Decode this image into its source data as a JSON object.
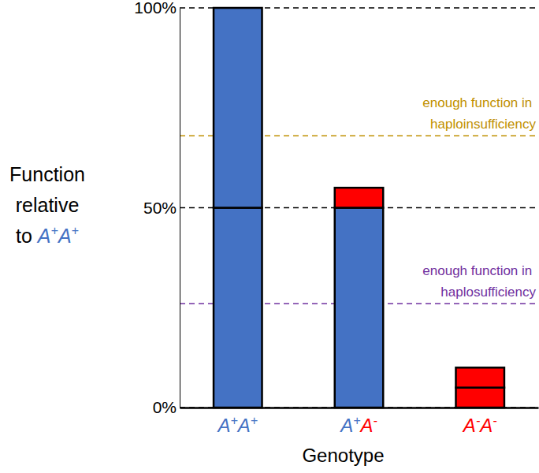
{
  "chart_data": {
    "type": "bar",
    "stacked": true,
    "y_label": "Function relative to A+A+",
    "x_label": "Genotype",
    "categories": [
      "A+A+",
      "A+A-",
      "A-A-"
    ],
    "series": [
      {
        "values": [
          50,
          50,
          5
        ],
        "colors": [
          "#4472c4",
          "#4472c4",
          "#ff0000"
        ]
      },
      {
        "values": [
          50,
          5,
          5
        ],
        "colors": [
          "#4472c4",
          "#ff0000",
          "#ff0000"
        ]
      }
    ],
    "ylim": [
      0,
      100
    ],
    "yticks": [
      {
        "value": 0,
        "label": "0%"
      },
      {
        "value": 50,
        "label": "50%"
      },
      {
        "value": 100,
        "label": "100%"
      }
    ],
    "grid": true,
    "annotations": [
      {
        "text": "enough function in haploinsufficiency",
        "y": 68,
        "color": "#bf9000"
      },
      {
        "text": "enough function in haplosufficiency",
        "y": 26,
        "color": "#7030a0"
      }
    ]
  }
}
